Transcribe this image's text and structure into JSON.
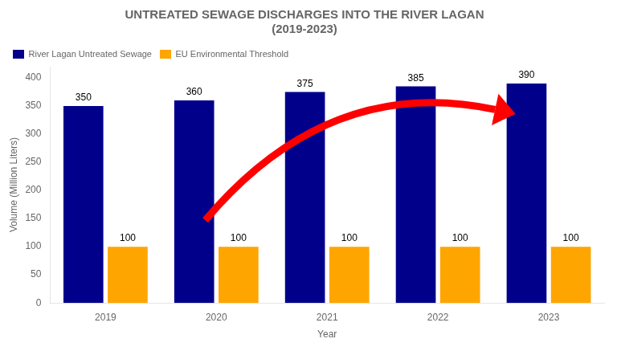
{
  "chart_data": {
    "type": "bar",
    "title": "UNTREATED SEWAGE DISCHARGES INTO THE RIVER LAGAN\n(2019-2023)",
    "xlabel": "Year",
    "ylabel": "Volume (Million Liters)",
    "categories": [
      "2019",
      "2020",
      "2021",
      "2022",
      "2023"
    ],
    "series": [
      {
        "name": "River Lagan Untreated Sewage",
        "color": "#00008B",
        "values": [
          350,
          360,
          375,
          385,
          390
        ]
      },
      {
        "name": "EU Environmental Threshold",
        "color": "#FFA500",
        "values": [
          100,
          100,
          100,
          100,
          100
        ]
      }
    ],
    "ylim": [
      0,
      420
    ],
    "yticks": [
      0,
      50,
      100,
      150,
      200,
      250,
      300,
      350,
      400
    ],
    "grid": false,
    "legend": "upper left",
    "data_labels": true
  }
}
